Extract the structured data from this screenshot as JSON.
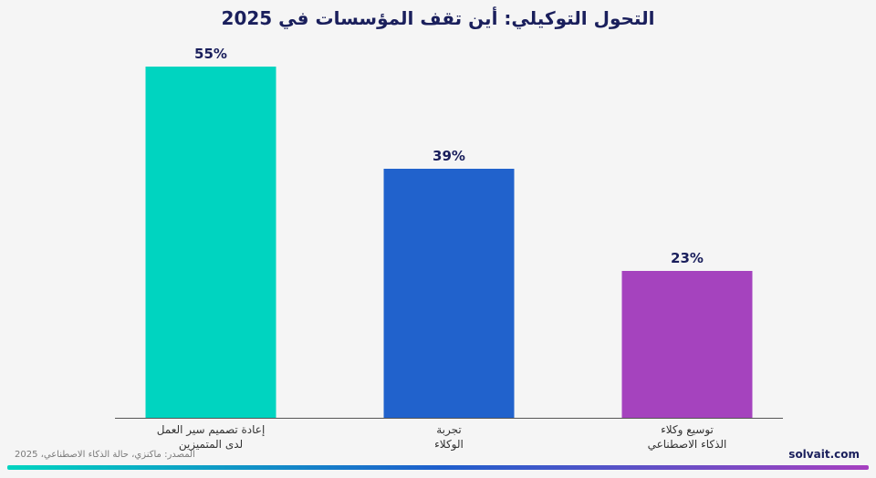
{
  "title": "التحول التوكيلي: أين تقف المؤسسات في 2025",
  "source": "المصدر: ماكنزي، حالة الذكاء الاصطناعي، 2025",
  "brand": "solvait.com",
  "gradient": {
    "start": "#00d4c0",
    "middle": "#1e5fcc",
    "end": "#a640c0"
  },
  "chart_data": {
    "type": "bar",
    "title": "التحول التوكيلي: أين تقف المؤسسات في 2025",
    "categories": [
      [
        "إعادة تصميم سير العمل",
        "لدى المتميزين"
      ],
      [
        "تجربة",
        "الوكلاء"
      ],
      [
        "توسيع وكلاء",
        "الذكاء الاصطناعي"
      ]
    ],
    "values": [
      55,
      39,
      23
    ],
    "value_labels": [
      "55%",
      "39%",
      "23%"
    ],
    "colors": [
      "#00d4c0",
      "#2162cc",
      "#a543be"
    ],
    "ylim": [
      0,
      60
    ],
    "grid": false,
    "legend": "none"
  }
}
